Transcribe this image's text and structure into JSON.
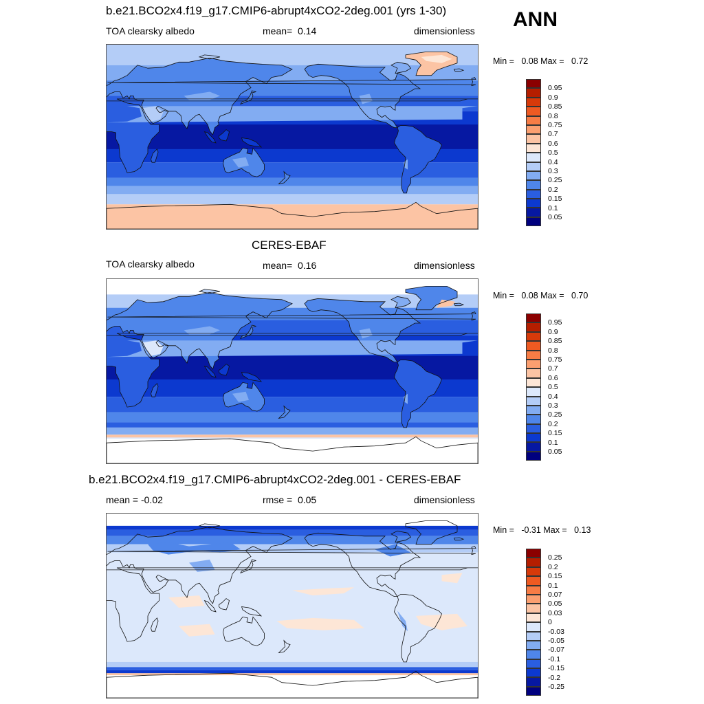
{
  "season": "ANN",
  "panels": [
    {
      "title": "b.e21.BCO2x4.f19_g17.CMIP6-abrupt4xCO2-2deg.001 (yrs 1-30)",
      "left_label": "TOA clearsky albedo",
      "center_prefix": "mean=",
      "center_value": "0.14",
      "right_label": "dimensionless",
      "min_label": "Min =",
      "min_value": "0.08",
      "max_label": "Max =",
      "max_value": "0.72",
      "colorbar": {
        "labels": [
          "0.95",
          "0.9",
          "0.85",
          "0.8",
          "0.75",
          "0.7",
          "0.6",
          "0.5",
          "0.4",
          "0.3",
          "0.25",
          "0.2",
          "0.15",
          "0.1",
          "0.05"
        ],
        "colors": [
          "#8b0000",
          "#b51e00",
          "#d73a0a",
          "#ee5a22",
          "#f77c45",
          "#fb9f70",
          "#fcc4a4",
          "#fde6d6",
          "#dce8fb",
          "#b4cdf7",
          "#82acf2",
          "#4f86ea",
          "#2a5ee0",
          "#0c39cf",
          "#0618a2",
          "#00007f"
        ]
      },
      "field": {
        "type": "albedo",
        "mean": 0.14,
        "min": 0.08,
        "max": 0.72
      }
    },
    {
      "title": "CERES-EBAF",
      "left_label": "TOA clearsky albedo",
      "center_prefix": "mean=",
      "center_value": "0.16",
      "right_label": "dimensionless",
      "min_label": "Min =",
      "min_value": "0.08",
      "max_label": "Max =",
      "max_value": "0.70",
      "colorbar": {
        "labels": [
          "0.95",
          "0.9",
          "0.85",
          "0.8",
          "0.75",
          "0.7",
          "0.6",
          "0.5",
          "0.4",
          "0.3",
          "0.25",
          "0.2",
          "0.15",
          "0.1",
          "0.05"
        ],
        "colors": [
          "#8b0000",
          "#b51e00",
          "#d73a0a",
          "#ee5a22",
          "#f77c45",
          "#fb9f70",
          "#fcc4a4",
          "#fde6d6",
          "#dce8fb",
          "#b4cdf7",
          "#82acf2",
          "#4f86ea",
          "#2a5ee0",
          "#0c39cf",
          "#0618a2",
          "#00007f"
        ]
      },
      "field": {
        "type": "albedo",
        "mean": 0.16,
        "min": 0.08,
        "max": 0.7
      }
    },
    {
      "title": "b.e21.BCO2x4.f19_g17.CMIP6-abrupt4xCO2-2deg.001 - CERES-EBAF",
      "left_label": "mean =  -0.02",
      "center_prefix": "rmse =",
      "center_value": "0.05",
      "right_label": "dimensionless",
      "min_label": "Min =",
      "min_value": "-0.31",
      "max_label": "Max =",
      "max_value": "0.13",
      "colorbar": {
        "labels": [
          "0.25",
          "0.2",
          "0.15",
          "0.1",
          "0.07",
          "0.05",
          "0.03",
          "0",
          "-0.03",
          "-0.05",
          "-0.07",
          "-0.1",
          "-0.15",
          "-0.2",
          "-0.25"
        ],
        "colors": [
          "#8b0000",
          "#b51e00",
          "#d73a0a",
          "#ee5a22",
          "#f77c45",
          "#fb9f70",
          "#fcc4a4",
          "#fde6d6",
          "#dce8fb",
          "#b4cdf7",
          "#82acf2",
          "#4f86ea",
          "#2a5ee0",
          "#0c39cf",
          "#0618a2",
          "#00007f"
        ]
      },
      "field": {
        "type": "difference",
        "mean": -0.02,
        "rmse": 0.05,
        "min": -0.31,
        "max": 0.13
      }
    }
  ]
}
